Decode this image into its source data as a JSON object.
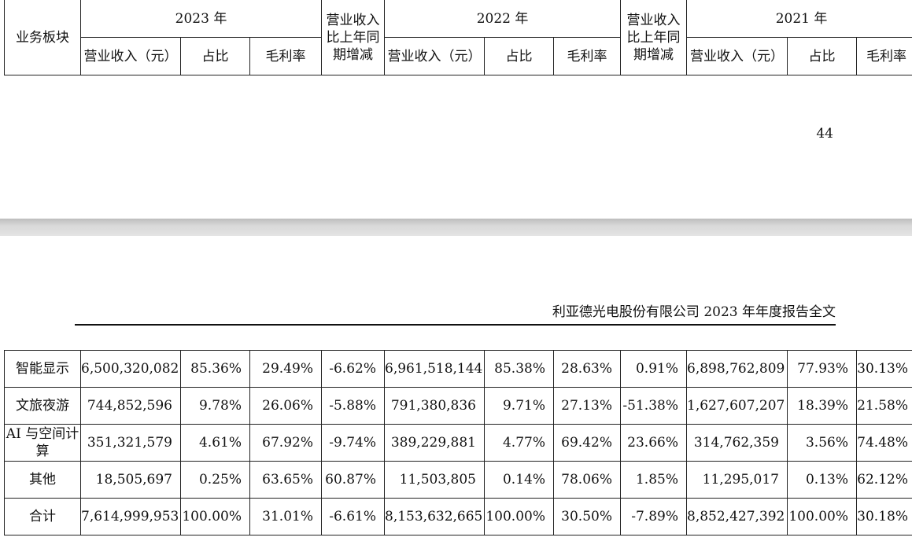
{
  "header_row": {
    "segment": "业务板块",
    "years": [
      "2023 年",
      "2022 年",
      "2021 年"
    ],
    "yoy_label": "营业收入比上年同期增减",
    "revenue_label": "营业收入（元）",
    "share_label": "占比",
    "margin_label": "毛利率"
  },
  "page_number": "44",
  "report_header": "利亚德光电股份有限公司 2023 年年度报告全文",
  "rows": [
    {
      "segment": "智能显示",
      "rev2023": "6,500,320,082",
      "share2023": "85.36%",
      "margin2023": "29.49%",
      "yoy2023": "-6.62%",
      "rev2022": "6,961,518,144",
      "share2022": "85.38%",
      "margin2022": "28.63%",
      "yoy2022": "0.91%",
      "rev2021": "6,898,762,809",
      "share2021": "77.93%",
      "margin2021": "30.13%"
    },
    {
      "segment": "文旅夜游",
      "rev2023": "744,852,596",
      "share2023": "9.78%",
      "margin2023": "26.06%",
      "yoy2023": "-5.88%",
      "rev2022": "791,380,836",
      "share2022": "9.71%",
      "margin2022": "27.13%",
      "yoy2022": "-51.38%",
      "rev2021": "1,627,607,207",
      "share2021": "18.39%",
      "margin2021": "21.58%"
    },
    {
      "segment": "AI 与空间计算",
      "rev2023": "351,321,579",
      "share2023": "4.61%",
      "margin2023": "67.92%",
      "yoy2023": "-9.74%",
      "rev2022": "389,229,881",
      "share2022": "4.77%",
      "margin2022": "69.42%",
      "yoy2022": "23.66%",
      "rev2021": "314,762,359",
      "share2021": "3.56%",
      "margin2021": "74.48%"
    },
    {
      "segment": "其他",
      "rev2023": "18,505,697",
      "share2023": "0.25%",
      "margin2023": "63.65%",
      "yoy2023": "60.87%",
      "rev2022": "11,503,805",
      "share2022": "0.14%",
      "margin2022": "78.06%",
      "yoy2022": "1.85%",
      "rev2021": "11,295,017",
      "share2021": "0.13%",
      "margin2021": "62.12%"
    },
    {
      "segment": "合计",
      "rev2023": "7,614,999,953",
      "share2023": "100.00%",
      "margin2023": "31.01%",
      "yoy2023": "-6.61%",
      "rev2022": "8,153,632,665",
      "share2022": "100.00%",
      "margin2022": "30.50%",
      "yoy2022": "-7.89%",
      "rev2021": "8,852,427,392",
      "share2021": "100.00%",
      "margin2021": "30.18%"
    }
  ]
}
